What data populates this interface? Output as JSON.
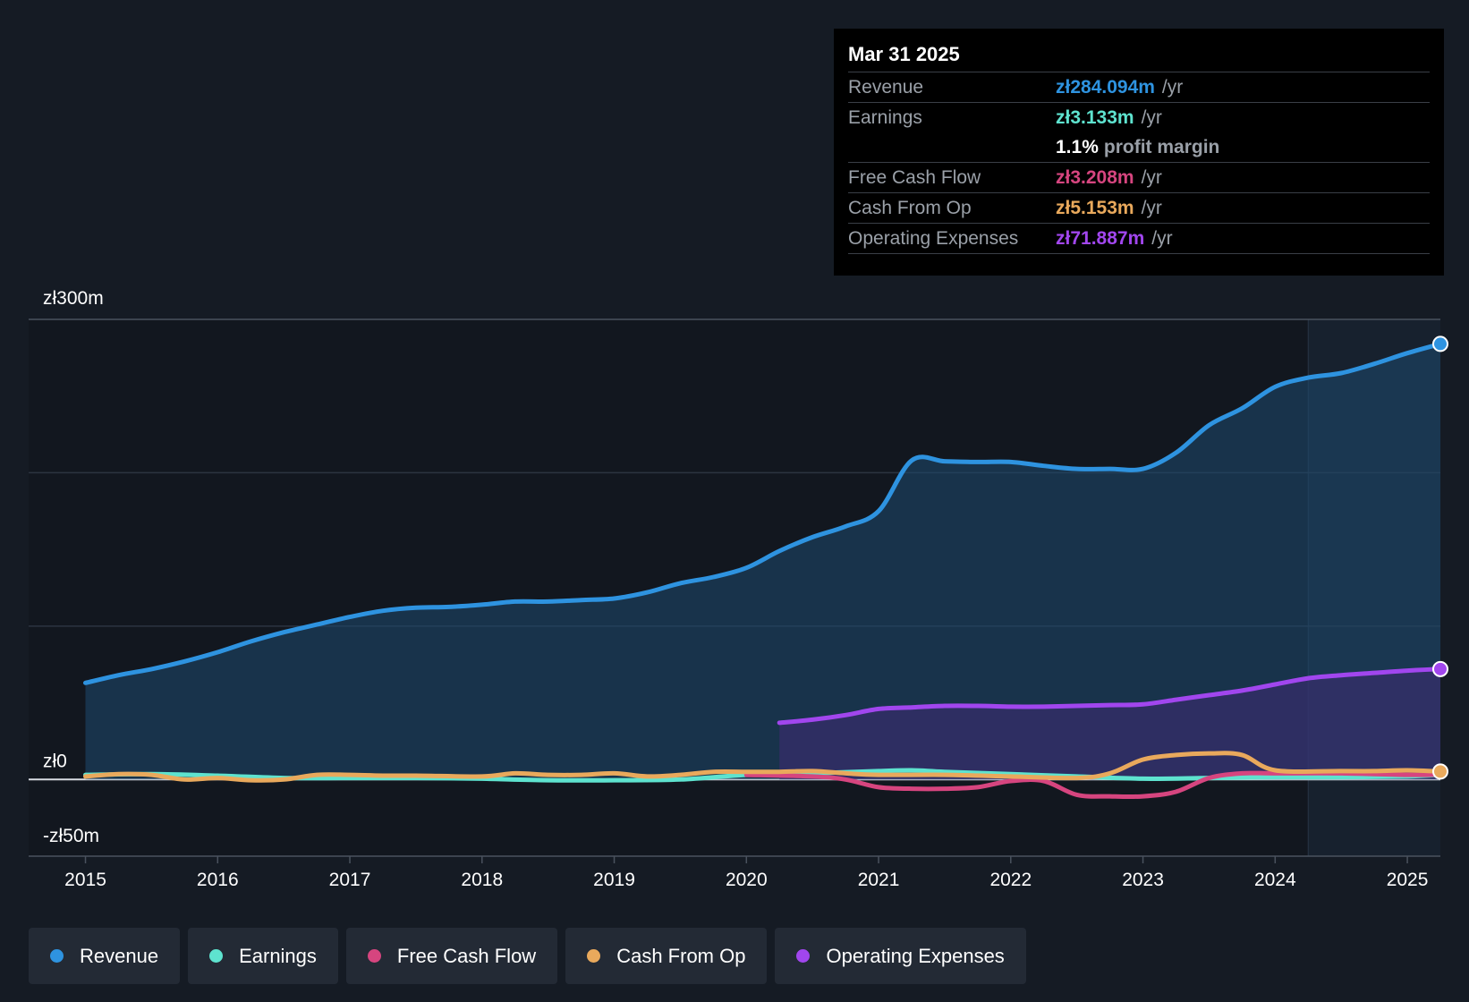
{
  "tooltip": {
    "date": "Mar 31 2025",
    "rows": [
      {
        "name": "Revenue",
        "value": "zł284.094m",
        "unit": "/yr",
        "color": "#2e93e0"
      },
      {
        "name": "Earnings",
        "value": "zł3.133m",
        "unit": "/yr",
        "color": "#5ee3cf"
      },
      {
        "margin_value": "1.1%",
        "margin_text": "profit margin"
      },
      {
        "name": "Free Cash Flow",
        "value": "zł3.208m",
        "unit": "/yr",
        "color": "#d6457f"
      },
      {
        "name": "Cash From Op",
        "value": "zł5.153m",
        "unit": "/yr",
        "color": "#e9a95c"
      },
      {
        "name": "Operating Expenses",
        "value": "zł71.887m",
        "unit": "/yr",
        "color": "#a146ee"
      }
    ]
  },
  "legend": [
    {
      "label": "Revenue",
      "color": "#2e93e0"
    },
    {
      "label": "Earnings",
      "color": "#5ee3cf"
    },
    {
      "label": "Free Cash Flow",
      "color": "#d6457f"
    },
    {
      "label": "Cash From Op",
      "color": "#e9a95c"
    },
    {
      "label": "Operating Expenses",
      "color": "#a146ee"
    }
  ],
  "chart_data": {
    "type": "area",
    "title": "",
    "xlabel": "",
    "ylabel": "",
    "y_unit": "zł m",
    "xlim": [
      2014.57,
      2025.25
    ],
    "ylim": [
      -50,
      300
    ],
    "y_axis_labels": [
      {
        "value": 300,
        "label": "zł300m"
      },
      {
        "value": 0,
        "label": "zł0"
      },
      {
        "value": -50,
        "label": "-zł50m"
      }
    ],
    "gridlines": [
      300,
      200,
      100,
      0
    ],
    "x_ticks": [
      2015,
      2016,
      2017,
      2018,
      2019,
      2020,
      2021,
      2022,
      2023,
      2024,
      2025
    ],
    "highlight_range": [
      2024.25,
      2025.25
    ],
    "series": [
      {
        "name": "Revenue",
        "color": "#2e93e0",
        "fill": true,
        "points": [
          [
            2015,
            63
          ],
          [
            2015.25,
            68
          ],
          [
            2015.5,
            72
          ],
          [
            2015.75,
            77
          ],
          [
            2016,
            83
          ],
          [
            2016.25,
            90
          ],
          [
            2016.5,
            96
          ],
          [
            2016.75,
            101
          ],
          [
            2017,
            106
          ],
          [
            2017.25,
            110
          ],
          [
            2017.5,
            112
          ],
          [
            2017.75,
            112.5
          ],
          [
            2018,
            114
          ],
          [
            2018.25,
            116
          ],
          [
            2018.5,
            116
          ],
          [
            2018.75,
            117
          ],
          [
            2019,
            118
          ],
          [
            2019.25,
            122
          ],
          [
            2019.5,
            128
          ],
          [
            2019.75,
            132
          ],
          [
            2020,
            138
          ],
          [
            2020.25,
            149
          ],
          [
            2020.5,
            158
          ],
          [
            2020.75,
            165
          ],
          [
            2021,
            175
          ],
          [
            2021.25,
            208
          ],
          [
            2021.5,
            207.5
          ],
          [
            2021.75,
            207
          ],
          [
            2022,
            207
          ],
          [
            2022.25,
            204.5
          ],
          [
            2022.5,
            202.5
          ],
          [
            2022.75,
            202.5
          ],
          [
            2023,
            202.5
          ],
          [
            2023.25,
            213
          ],
          [
            2023.5,
            231
          ],
          [
            2023.75,
            242
          ],
          [
            2024,
            256
          ],
          [
            2024.25,
            262
          ],
          [
            2024.5,
            265
          ],
          [
            2024.75,
            271
          ],
          [
            2025,
            278
          ],
          [
            2025.25,
            284
          ]
        ]
      },
      {
        "name": "Operating Expenses",
        "color": "#a146ee",
        "fill": true,
        "points": [
          [
            2020.25,
            37
          ],
          [
            2020.5,
            39
          ],
          [
            2020.75,
            42
          ],
          [
            2021,
            46
          ],
          [
            2021.25,
            47
          ],
          [
            2021.5,
            48
          ],
          [
            2021.75,
            48
          ],
          [
            2022,
            47.5
          ],
          [
            2022.25,
            47.5
          ],
          [
            2022.5,
            48
          ],
          [
            2022.75,
            48.5
          ],
          [
            2023,
            49
          ],
          [
            2023.25,
            52
          ],
          [
            2023.5,
            55
          ],
          [
            2023.75,
            58
          ],
          [
            2024,
            62
          ],
          [
            2024.25,
            66
          ],
          [
            2024.5,
            68
          ],
          [
            2024.75,
            69.5
          ],
          [
            2025,
            71
          ],
          [
            2025.25,
            72
          ]
        ]
      },
      {
        "name": "Earnings",
        "color": "#5ee3cf",
        "fill": false,
        "points": [
          [
            2015,
            3
          ],
          [
            2015.5,
            3.5
          ],
          [
            2016,
            2.5
          ],
          [
            2016.5,
            1
          ],
          [
            2017,
            1
          ],
          [
            2017.5,
            1
          ],
          [
            2018,
            0.5
          ],
          [
            2018.5,
            -0.5
          ],
          [
            2019,
            -0.5
          ],
          [
            2019.5,
            0
          ],
          [
            2020,
            3
          ],
          [
            2020.5,
            4
          ],
          [
            2021,
            5.5
          ],
          [
            2021.25,
            6
          ],
          [
            2021.5,
            5
          ],
          [
            2022,
            3.5
          ],
          [
            2022.5,
            2
          ],
          [
            2023,
            0.5
          ],
          [
            2023.5,
            1
          ],
          [
            2024,
            1.5
          ],
          [
            2024.5,
            1.5
          ],
          [
            2025,
            2
          ],
          [
            2025.25,
            3.1
          ]
        ]
      },
      {
        "name": "Free Cash Flow",
        "color": "#d6457f",
        "fill": false,
        "points": [
          [
            2020,
            3
          ],
          [
            2020.5,
            2
          ],
          [
            2020.75,
            0
          ],
          [
            2021,
            -5
          ],
          [
            2021.25,
            -6
          ],
          [
            2021.5,
            -6
          ],
          [
            2021.75,
            -5
          ],
          [
            2022,
            -1
          ],
          [
            2022.25,
            -1
          ],
          [
            2022.5,
            -10
          ],
          [
            2022.75,
            -11
          ],
          [
            2023,
            -11
          ],
          [
            2023.25,
            -8
          ],
          [
            2023.5,
            1
          ],
          [
            2023.75,
            4
          ],
          [
            2024,
            4
          ],
          [
            2024.5,
            4
          ],
          [
            2025,
            3
          ],
          [
            2025.25,
            3.2
          ]
        ]
      },
      {
        "name": "Cash From Op",
        "color": "#e9a95c",
        "fill": false,
        "points": [
          [
            2015,
            2
          ],
          [
            2015.25,
            3.5
          ],
          [
            2015.5,
            3
          ],
          [
            2015.75,
            0
          ],
          [
            2016,
            1
          ],
          [
            2016.25,
            -0.5
          ],
          [
            2016.5,
            0
          ],
          [
            2016.75,
            3
          ],
          [
            2017,
            3
          ],
          [
            2017.25,
            2.5
          ],
          [
            2017.5,
            2.5
          ],
          [
            2018,
            2
          ],
          [
            2018.25,
            4
          ],
          [
            2018.5,
            3
          ],
          [
            2018.75,
            3
          ],
          [
            2019,
            4
          ],
          [
            2019.25,
            2
          ],
          [
            2019.5,
            3
          ],
          [
            2019.75,
            5
          ],
          [
            2020,
            5
          ],
          [
            2020.25,
            5
          ],
          [
            2020.5,
            5.5
          ],
          [
            2020.75,
            4
          ],
          [
            2021,
            3
          ],
          [
            2021.5,
            3
          ],
          [
            2022,
            2
          ],
          [
            2022.5,
            1
          ],
          [
            2022.75,
            4
          ],
          [
            2023,
            13
          ],
          [
            2023.25,
            16
          ],
          [
            2023.5,
            17
          ],
          [
            2023.75,
            16
          ],
          [
            2024,
            6
          ],
          [
            2024.5,
            5.5
          ],
          [
            2024.75,
            5.5
          ],
          [
            2025,
            6
          ],
          [
            2025.25,
            5.2
          ]
        ]
      }
    ]
  }
}
